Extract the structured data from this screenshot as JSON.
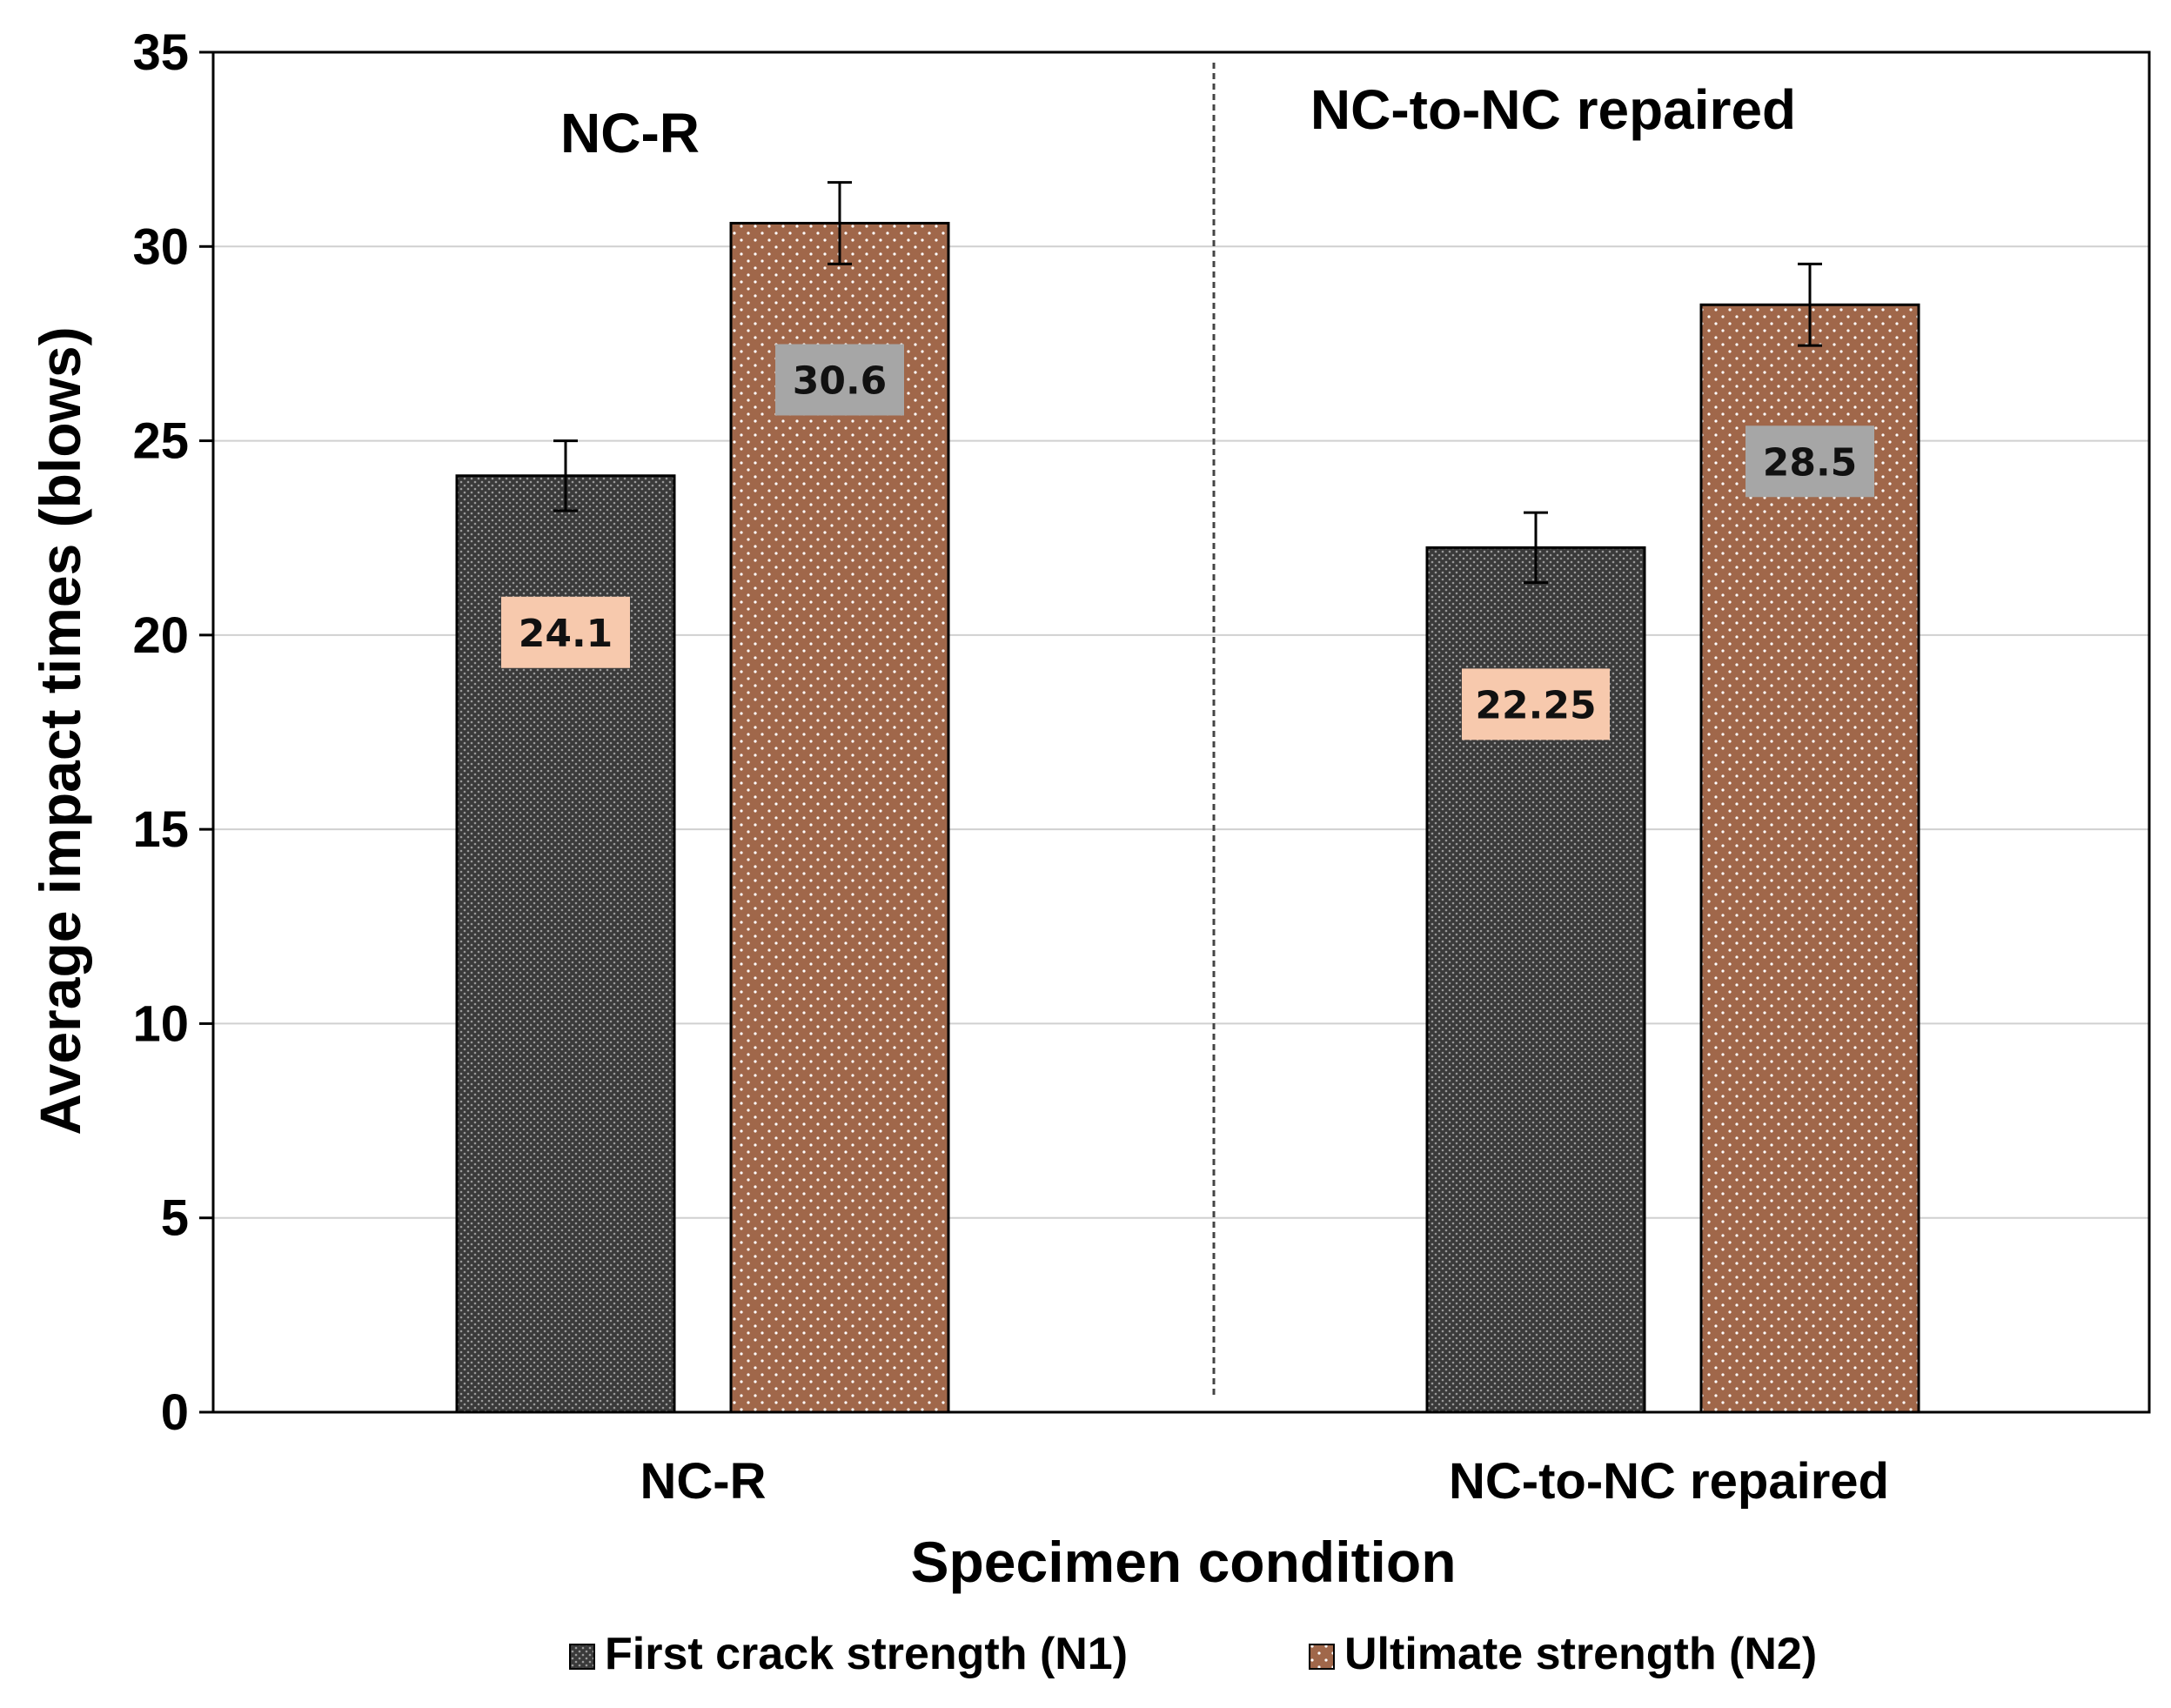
{
  "chart_data": {
    "type": "bar",
    "title": "",
    "xlabel": "Specimen condition",
    "ylabel": "Average impact times (blows)",
    "categories": [
      "NC-R",
      "NC-to-NC repaired"
    ],
    "series": [
      {
        "name": "First crack strength (N1)",
        "values": [
          24.1,
          22.25
        ],
        "errors": [
          0.9,
          0.9
        ],
        "value_labels": [
          "24.1",
          "22.25"
        ],
        "fill": "#3a3a3a",
        "pattern_dot": "#9a9a9a",
        "label_bg": "#f7c9ad"
      },
      {
        "name": "Ultimate strength (N2)",
        "values": [
          30.6,
          28.5
        ],
        "errors": [
          1.05,
          1.05
        ],
        "value_labels": [
          "30.6",
          "28.5"
        ],
        "fill": "#a0674a",
        "pattern_dot": "#ffffff",
        "label_bg": "#a6a6a6"
      }
    ],
    "ylim": [
      0,
      35
    ],
    "yticks": [
      "0",
      "5",
      "10",
      "15",
      "20",
      "25",
      "30",
      "35"
    ],
    "annotations": [
      "NC-R",
      "NC-to-NC repaired"
    ],
    "grid": true,
    "legend_position": "bottom",
    "colors": {
      "axis": "#000000",
      "grid": "#d0d0d0",
      "divider": "#444444"
    }
  }
}
